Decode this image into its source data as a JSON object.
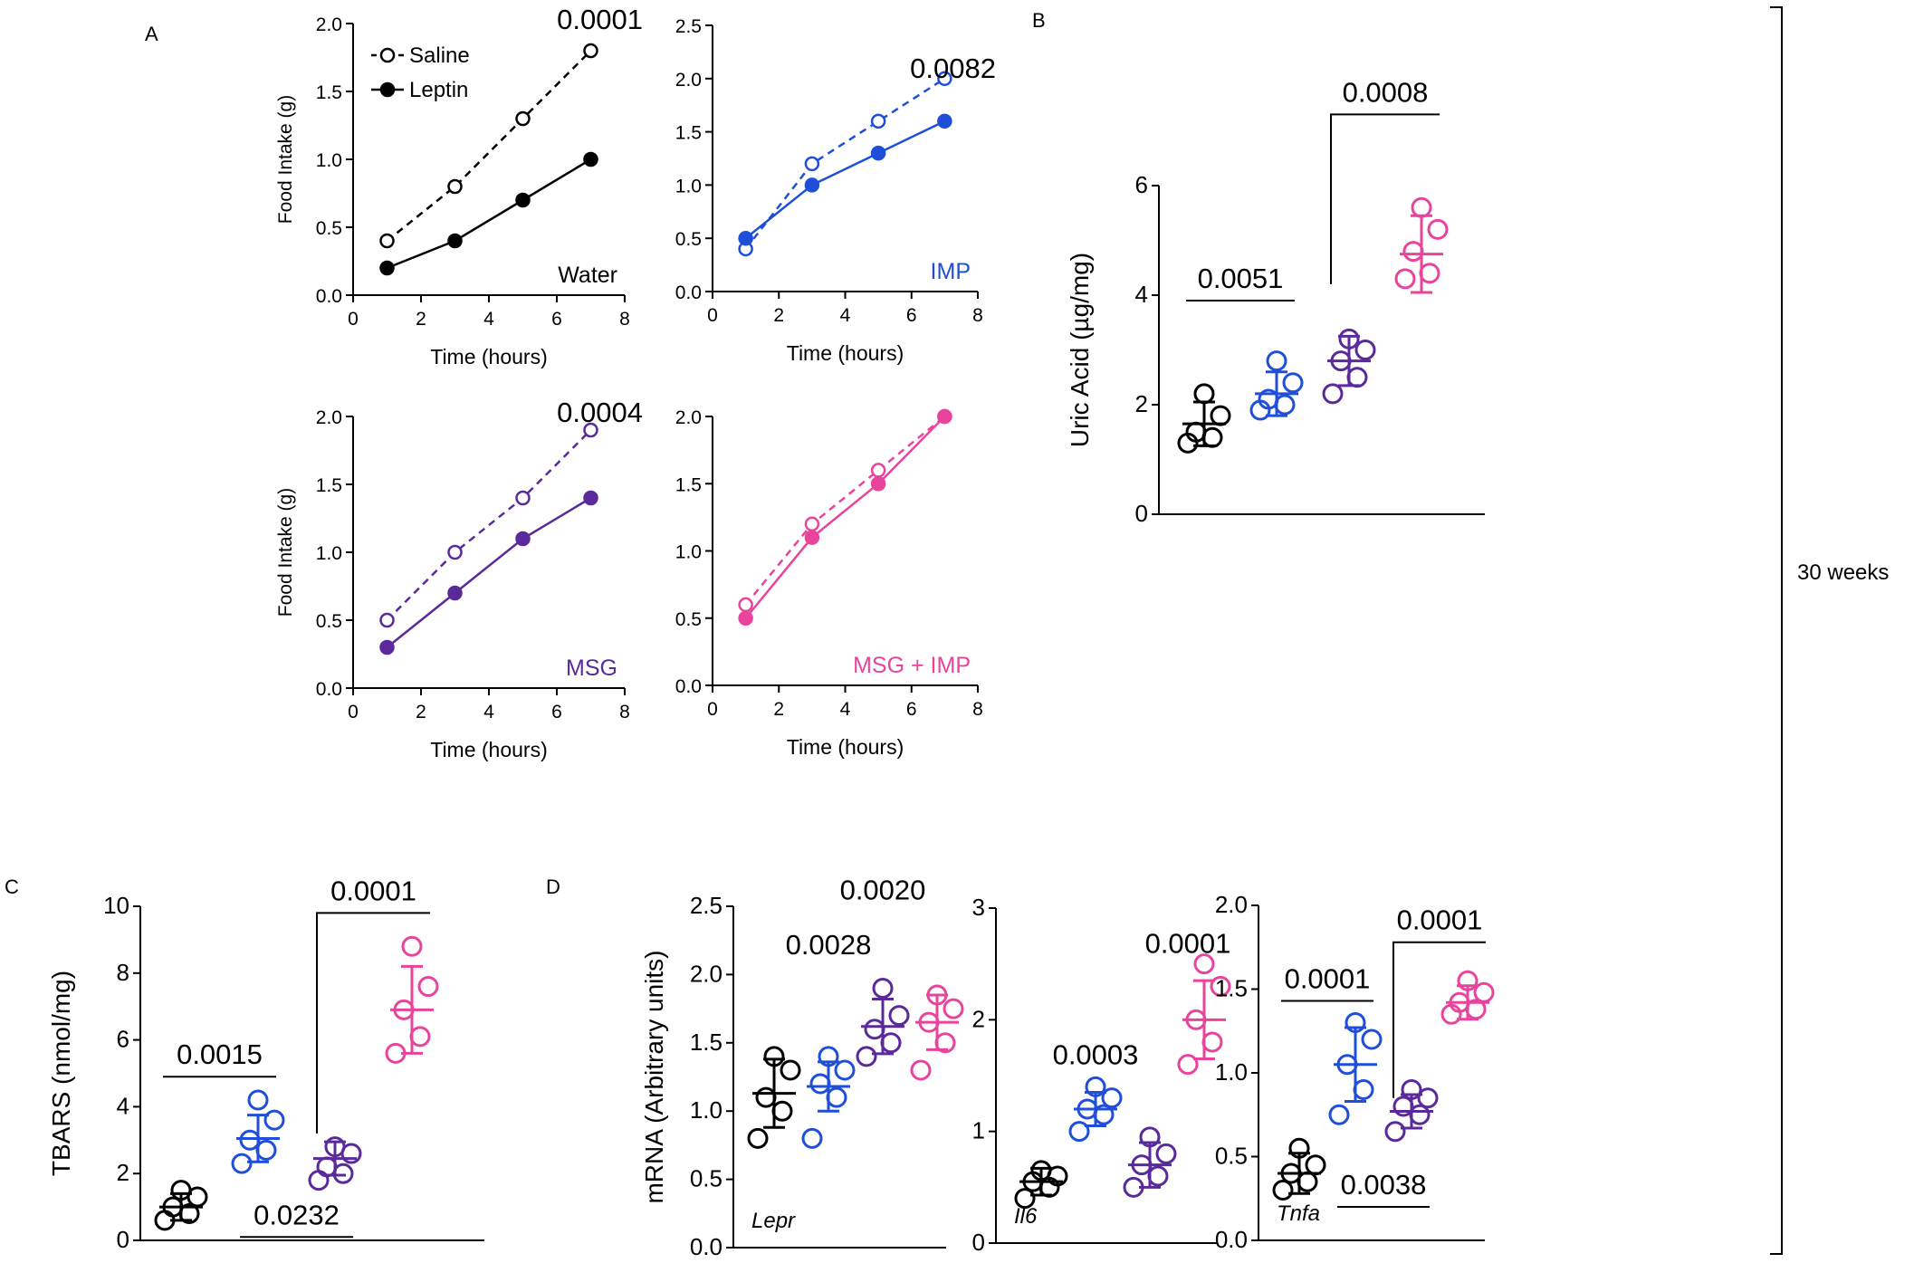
{
  "panel_labels": {
    "A": "A",
    "B": "B",
    "C": "C",
    "D": "D"
  },
  "bracket_label": "30 weeks",
  "colors": {
    "water": "#000000",
    "imp": "#1f4fd8",
    "msg": "#5a2a9a",
    "msgimp": "#e8449b"
  },
  "chart_data": [
    {
      "id": "a1",
      "type": "line",
      "panel": "A",
      "ylabel": "Food Intake (g)",
      "xlabel": "Time (hours)",
      "xlim": [
        0,
        8
      ],
      "xticks": [
        0,
        2,
        4,
        6,
        8
      ],
      "ylim": [
        0,
        2
      ],
      "yticks": [
        0,
        0.5,
        1,
        1.5,
        2
      ],
      "ytick_labels": [
        "0.0",
        "0.5",
        "1.0",
        "1.5",
        "2.0"
      ],
      "condition": "Water",
      "condition_color": "#000000",
      "pvalue": "0.0001",
      "legend": {
        "saline": "Saline",
        "leptin": "Leptin"
      },
      "x": [
        1,
        3,
        5,
        7
      ],
      "series": [
        {
          "name": "Saline",
          "style": "open-dashed",
          "color": "#000000",
          "values": [
            0.4,
            0.8,
            1.3,
            1.8
          ]
        },
        {
          "name": "Leptin",
          "style": "filled-solid",
          "color": "#000000",
          "values": [
            0.2,
            0.4,
            0.7,
            1.0
          ]
        }
      ]
    },
    {
      "id": "a2",
      "type": "line",
      "panel": "A",
      "ylabel": "",
      "xlabel": "Time (hours)",
      "xlim": [
        0,
        8
      ],
      "xticks": [
        0,
        2,
        4,
        6,
        8
      ],
      "ylim": [
        0,
        2.5
      ],
      "yticks": [
        0,
        0.5,
        1,
        1.5,
        2,
        2.5
      ],
      "ytick_labels": [
        "0.0",
        "0.5",
        "1.0",
        "1.5",
        "2.0",
        "2.5"
      ],
      "condition": "IMP",
      "condition_color": "#1f4fd8",
      "pvalue": "0.0082",
      "x": [
        1,
        3,
        5,
        7
      ],
      "series": [
        {
          "name": "Saline",
          "style": "open-dashed",
          "color": "#1f4fd8",
          "values": [
            0.4,
            1.2,
            1.6,
            2.0
          ]
        },
        {
          "name": "Leptin",
          "style": "filled-solid",
          "color": "#1f4fd8",
          "values": [
            0.5,
            1.0,
            1.3,
            1.6
          ]
        }
      ]
    },
    {
      "id": "a3",
      "type": "line",
      "panel": "A",
      "ylabel": "Food Intake (g)",
      "xlabel": "Time (hours)",
      "xlim": [
        0,
        8
      ],
      "xticks": [
        0,
        2,
        4,
        6,
        8
      ],
      "ylim": [
        0,
        2
      ],
      "yticks": [
        0,
        0.5,
        1,
        1.5,
        2
      ],
      "ytick_labels": [
        "0.0",
        "0.5",
        "1.0",
        "1.5",
        "2.0"
      ],
      "condition": "MSG",
      "condition_color": "#5a2a9a",
      "pvalue": "0.0004",
      "x": [
        1,
        3,
        5,
        7
      ],
      "series": [
        {
          "name": "Saline",
          "style": "open-dashed",
          "color": "#5a2a9a",
          "values": [
            0.5,
            1.0,
            1.4,
            1.9
          ]
        },
        {
          "name": "Leptin",
          "style": "filled-solid",
          "color": "#5a2a9a",
          "values": [
            0.3,
            0.7,
            1.1,
            1.4
          ]
        }
      ]
    },
    {
      "id": "a4",
      "type": "line",
      "panel": "A",
      "ylabel": "",
      "xlabel": "Time (hours)",
      "xlim": [
        0,
        8
      ],
      "xticks": [
        0,
        2,
        4,
        6,
        8
      ],
      "ylim": [
        0,
        2
      ],
      "yticks": [
        0,
        0.5,
        1,
        1.5,
        2
      ],
      "ytick_labels": [
        "0.0",
        "0.5",
        "1.0",
        "1.5",
        "2.0"
      ],
      "condition": "MSG + IMP",
      "condition_color": "#e8449b",
      "pvalue": "",
      "x": [
        1,
        3,
        5,
        7
      ],
      "series": [
        {
          "name": "Saline",
          "style": "open-dashed",
          "color": "#e8449b",
          "values": [
            0.6,
            1.2,
            1.6,
            2.0
          ]
        },
        {
          "name": "Leptin",
          "style": "filled-solid",
          "color": "#e8449b",
          "values": [
            0.5,
            1.1,
            1.5,
            2.0
          ]
        }
      ]
    },
    {
      "id": "b",
      "type": "scatter",
      "panel": "B",
      "ylabel": "Uric Acid  (µg/mg)",
      "ylim": [
        0,
        6
      ],
      "yticks": [
        0,
        2,
        4,
        6
      ],
      "ytick_labels": [
        "0",
        "2",
        "4",
        "6"
      ],
      "groups": [
        {
          "name": "Water",
          "color": "#000000",
          "points": [
            1.3,
            1.4,
            1.5,
            1.8,
            2.2
          ],
          "mean": 1.65,
          "sd": 0.4
        },
        {
          "name": "IMP",
          "color": "#1f4fd8",
          "points": [
            1.9,
            2.0,
            2.1,
            2.4,
            2.8
          ],
          "mean": 2.2,
          "sd": 0.4
        },
        {
          "name": "MSG",
          "color": "#5a2a9a",
          "points": [
            2.2,
            2.5,
            2.8,
            3.0,
            3.2
          ],
          "mean": 2.8,
          "sd": 0.45
        },
        {
          "name": "MSG + IMP",
          "color": "#e8449b",
          "points": [
            4.3,
            4.4,
            4.8,
            5.2,
            5.6
          ],
          "mean": 4.75,
          "sd": 0.7
        }
      ],
      "comparisons": [
        {
          "groups": [
            0,
            1
          ],
          "label": "0.0051",
          "type": "line",
          "y": 3.9,
          "pos": "above"
        },
        {
          "groups": [
            2,
            3
          ],
          "label": "0.0008",
          "type": "bracket",
          "y": 7.3,
          "drop": 4.2,
          "pos": "above"
        }
      ]
    },
    {
      "id": "c",
      "type": "scatter",
      "panel": "C",
      "ylabel": "TBARS (nmol/mg)",
      "ylim": [
        0,
        10
      ],
      "yticks": [
        0,
        2,
        4,
        6,
        8,
        10
      ],
      "ytick_labels": [
        "0",
        "2",
        "4",
        "6",
        "8",
        "10"
      ],
      "groups": [
        {
          "name": "Water",
          "color": "#000000",
          "points": [
            0.6,
            0.8,
            1.0,
            1.3,
            1.5
          ],
          "mean": 1.0,
          "sd": 0.4
        },
        {
          "name": "IMP",
          "color": "#1f4fd8",
          "points": [
            2.3,
            2.7,
            3.0,
            3.6,
            4.2
          ],
          "mean": 3.05,
          "sd": 0.7
        },
        {
          "name": "MSG",
          "color": "#5a2a9a",
          "points": [
            1.8,
            2.0,
            2.2,
            2.6,
            2.8
          ],
          "mean": 2.45,
          "sd": 0.5
        },
        {
          "name": "MSG + IMP",
          "color": "#e8449b",
          "points": [
            5.6,
            6.1,
            6.9,
            7.6,
            8.8
          ],
          "mean": 6.9,
          "sd": 1.3
        }
      ],
      "comparisons": [
        {
          "groups": [
            0,
            1
          ],
          "label": "0.0015",
          "type": "line",
          "y": 4.9,
          "pos": "above"
        },
        {
          "groups": [
            1,
            2
          ],
          "label": "0.0232",
          "type": "line",
          "y": 0.1,
          "pos": "above"
        },
        {
          "groups": [
            2,
            3
          ],
          "label": "0.0001",
          "type": "bracket",
          "y": 9.8,
          "drop": 3.2,
          "pos": "above"
        }
      ]
    },
    {
      "id": "d1",
      "type": "scatter",
      "panel": "D",
      "ylabel": "mRNA  (Arbitrary units)",
      "gene": "Lepr",
      "ylim": [
        0,
        2.5
      ],
      "yticks": [
        0,
        0.5,
        1,
        1.5,
        2,
        2.5
      ],
      "ytick_labels": [
        "0.0",
        "0.5",
        "1.0",
        "1.5",
        "2.0",
        "2.5"
      ],
      "groups": [
        {
          "name": "Water",
          "color": "#000000",
          "points": [
            0.8,
            1.0,
            1.1,
            1.3,
            1.4
          ],
          "mean": 1.13,
          "sd": 0.25
        },
        {
          "name": "IMP",
          "color": "#1f4fd8",
          "points": [
            0.8,
            1.1,
            1.2,
            1.3,
            1.4
          ],
          "mean": 1.18,
          "sd": 0.18
        },
        {
          "name": "MSG",
          "color": "#5a2a9a",
          "points": [
            1.4,
            1.5,
            1.6,
            1.7,
            1.9
          ],
          "mean": 1.62,
          "sd": 0.2
        },
        {
          "name": "MSG + IMP",
          "color": "#e8449b",
          "points": [
            1.3,
            1.5,
            1.65,
            1.75,
            1.85
          ],
          "mean": 1.65,
          "sd": 0.2
        }
      ],
      "annotations": [
        {
          "label": "0.0028",
          "at": 1.5,
          "y": 2.15
        },
        {
          "label": "0.0020",
          "at": 2.5,
          "y": 2.55
        }
      ]
    },
    {
      "id": "d2",
      "type": "scatter",
      "panel": "D",
      "ylabel": "",
      "gene": "Il6",
      "ylim": [
        0,
        3
      ],
      "yticks": [
        0,
        1,
        2,
        3
      ],
      "ytick_labels": [
        "0",
        "1",
        "2",
        "3"
      ],
      "groups": [
        {
          "name": "Water",
          "color": "#000000",
          "points": [
            0.4,
            0.5,
            0.55,
            0.6,
            0.65
          ],
          "mean": 0.55,
          "sd": 0.12
        },
        {
          "name": "IMP",
          "color": "#1f4fd8",
          "points": [
            1.0,
            1.15,
            1.2,
            1.3,
            1.4
          ],
          "mean": 1.2,
          "sd": 0.15
        },
        {
          "name": "MSG",
          "color": "#5a2a9a",
          "points": [
            0.5,
            0.6,
            0.7,
            0.8,
            0.95
          ],
          "mean": 0.7,
          "sd": 0.2
        },
        {
          "name": "MSG + IMP",
          "color": "#e8449b",
          "points": [
            1.6,
            1.8,
            2.0,
            2.3,
            2.5
          ],
          "mean": 2.0,
          "sd": 0.35
        }
      ],
      "annotations": [
        {
          "label": "0.0003",
          "at": 1.5,
          "y": 1.6
        },
        {
          "label": "0.0001",
          "at": 3.2,
          "y": 2.6
        }
      ]
    },
    {
      "id": "d3",
      "type": "scatter",
      "panel": "D",
      "ylabel": "",
      "gene": "Tnfa",
      "ylim": [
        0,
        2
      ],
      "yticks": [
        0,
        0.5,
        1,
        1.5,
        2
      ],
      "ytick_labels": [
        "0.0",
        "0.5",
        "1.0",
        "1.5",
        "2.0"
      ],
      "groups": [
        {
          "name": "Water",
          "color": "#000000",
          "points": [
            0.3,
            0.35,
            0.4,
            0.45,
            0.55
          ],
          "mean": 0.4,
          "sd": 0.12
        },
        {
          "name": "IMP",
          "color": "#1f4fd8",
          "points": [
            0.75,
            0.9,
            1.05,
            1.2,
            1.3
          ],
          "mean": 1.05,
          "sd": 0.22
        },
        {
          "name": "MSG",
          "color": "#5a2a9a",
          "points": [
            0.65,
            0.75,
            0.8,
            0.85,
            0.9
          ],
          "mean": 0.77,
          "sd": 0.1
        },
        {
          "name": "MSG + IMP",
          "color": "#e8449b",
          "points": [
            1.35,
            1.38,
            1.42,
            1.48,
            1.55
          ],
          "mean": 1.42,
          "sd": 0.1
        }
      ],
      "comparisons": [
        {
          "groups": [
            0,
            1
          ],
          "label": "0.0001",
          "type": "line",
          "y": 1.43,
          "pos": "above"
        },
        {
          "groups": [
            1,
            2
          ],
          "label": "0.0038",
          "type": "line",
          "y": 0.2,
          "pos": "above"
        },
        {
          "groups": [
            2,
            3
          ],
          "label": "0.0001",
          "type": "bracket",
          "y": 1.78,
          "drop": 0.85,
          "pos": "above"
        }
      ]
    }
  ]
}
